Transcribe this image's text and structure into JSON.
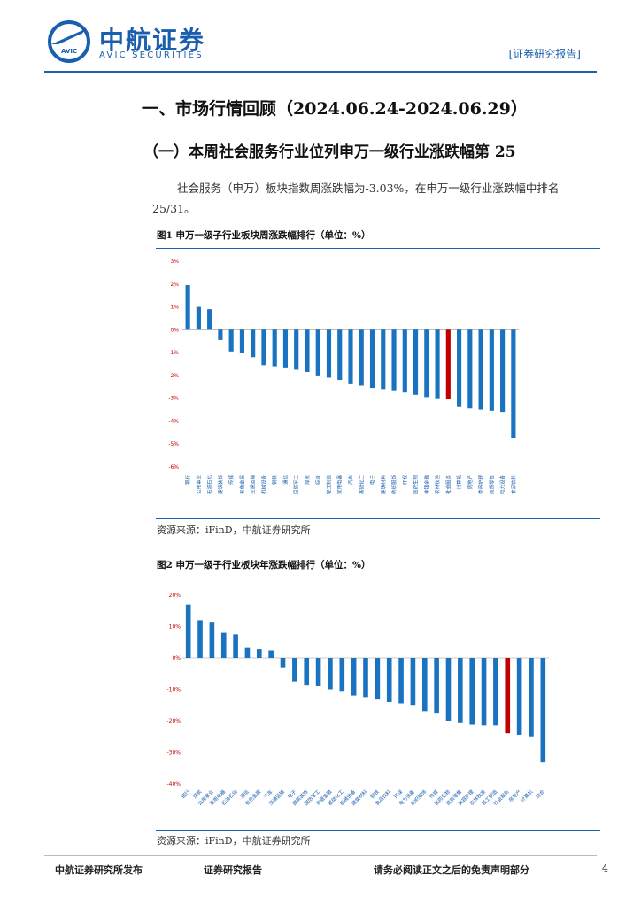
{
  "header": {
    "logo_cn": "中航证券",
    "logo_en": "AVIC SECURITIES",
    "logo_badge": "AVIC",
    "tag": "[证券研究报告]"
  },
  "section_title": "一、市场行情回顾（2024.06.24-2024.06.29）",
  "subsection_title": "（一）本周社会服务行业位列申万一级行业涨跌幅第 25",
  "paragraph": {
    "line1": "社会服务（申万）板块指数周涨跌幅为-3.03%，在申万一级行业涨跌幅中排名",
    "line2": "25/31。"
  },
  "figure1": {
    "title": "图1  申万一级子行业板块周涨跌幅排行（单位：%）",
    "source": "资源来源：iFinD，中航证券研究所"
  },
  "figure2": {
    "title": "图2  申万一级子行业板块年涨跌幅排行（单位：%）",
    "source": "资源来源：iFinD，中航证券研究所"
  },
  "footer": {
    "left": "中航证券研究所发布",
    "center": "证券研究报告",
    "right": "请务必阅读正文之后的免责声明部分",
    "page": "4"
  },
  "colors": {
    "bar": "#1a73c0",
    "highlight": "#c00000",
    "brand": "#1a5fae"
  },
  "chart_data": [
    {
      "type": "bar",
      "title": "申万一级子行业板块周涨跌幅排行（单位：%）",
      "ylabel": "%",
      "ylim": [
        -6,
        3
      ],
      "yticks": [
        3,
        2,
        1,
        0,
        -1,
        -2,
        -3,
        -4,
        -5,
        -6
      ],
      "highlight": "社会服务",
      "categories": [
        "银行",
        "公用事业",
        "石油石化",
        "建筑装饰",
        "传媒",
        "有色金属",
        "交通运输",
        "机械设备",
        "钢铁",
        "通信",
        "国防军工",
        "煤炭",
        "综合",
        "轻工制造",
        "家用电器",
        "汽车",
        "基础化工",
        "电子",
        "建筑材料",
        "纺织服饰",
        "环保",
        "医药生物",
        "非银金融",
        "农林牧渔",
        "社会服务",
        "计算机",
        "房地产",
        "美容护理",
        "商贸零售",
        "电力设备",
        "食品饮料"
      ],
      "values": [
        1.95,
        1.0,
        0.9,
        -0.45,
        -0.95,
        -1.0,
        -1.2,
        -1.55,
        -1.6,
        -1.65,
        -1.75,
        -1.85,
        -2.0,
        -2.1,
        -2.2,
        -2.35,
        -2.45,
        -2.55,
        -2.6,
        -2.65,
        -2.75,
        -2.85,
        -2.95,
        -3.0,
        -3.03,
        -3.35,
        -3.45,
        -3.5,
        -3.55,
        -3.6,
        -4.75
      ]
    },
    {
      "type": "bar",
      "title": "申万一级子行业板块年涨跌幅排行（单位：%）",
      "ylabel": "%",
      "ylim": [
        -40,
        20
      ],
      "yticks": [
        20,
        10,
        0,
        -10,
        -20,
        -30,
        -40
      ],
      "highlight": "社会服务",
      "categories": [
        "银行",
        "煤炭",
        "公用事业",
        "家用电器",
        "石油石化",
        "通信",
        "有色金属",
        "汽车",
        "交通运输",
        "电子",
        "建筑装饰",
        "国防军工",
        "非银金融",
        "基础化工",
        "机械设备",
        "建筑材料",
        "钢铁",
        "食品饮料",
        "环保",
        "电力设备",
        "纺织服饰",
        "传媒",
        "医药生物",
        "商贸零售",
        "美容护理",
        "农林牧渔",
        "轻工制造",
        "社会服务",
        "房地产",
        "计算机",
        "综合"
      ],
      "values": [
        17,
        12,
        11.5,
        8,
        7.5,
        3.2,
        2.8,
        2.4,
        -3,
        -7.5,
        -8.5,
        -9,
        -10,
        -10.5,
        -12,
        -12.5,
        -13,
        -14,
        -14.5,
        -15,
        -17,
        -17.5,
        -20,
        -20.5,
        -21,
        -21.5,
        -21.5,
        -24,
        -24.5,
        -25,
        -33
      ]
    }
  ]
}
